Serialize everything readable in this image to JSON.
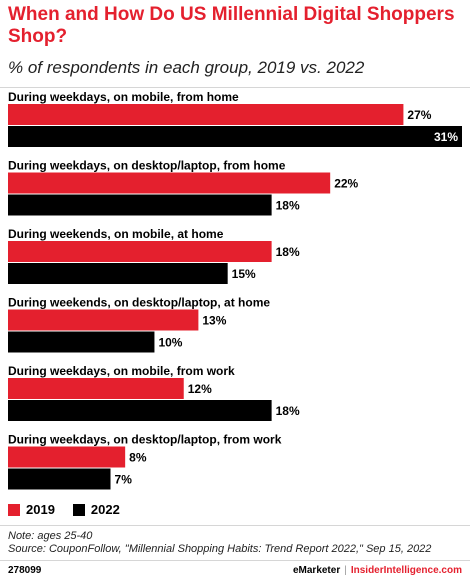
{
  "header": {
    "title": "When and How Do US Millennial Digital Shoppers Shop?",
    "subtitle": "% of respondents in each group, 2019 vs. 2022"
  },
  "colors": {
    "s2019": "#e4202e",
    "s2022": "#000000"
  },
  "legend": {
    "s2019": "2019",
    "s2022": "2022"
  },
  "notes": {
    "note": "Note: ages 25-40",
    "source": "Source: CouponFollow, \"Millennial Shopping Habits: Trend Report 2022,\" Sep 15, 2022"
  },
  "footer": {
    "id": "278099",
    "brand_left": "eMarketer",
    "brand_sep": "|",
    "brand_right": "InsiderIntelligence.com"
  },
  "chart_data": {
    "type": "bar",
    "orientation": "horizontal",
    "categories": [
      "During weekdays, on mobile, from home",
      "During weekdays, on desktop/laptop, from home",
      "During weekends, on mobile, at home",
      "During weekends, on desktop/laptop, at home",
      "During weekdays, on mobile, from work",
      "During weekdays, on desktop/laptop, from work"
    ],
    "series": [
      {
        "name": "2019",
        "values": [
          27,
          22,
          18,
          13,
          12,
          8
        ]
      },
      {
        "name": "2022",
        "values": [
          31,
          18,
          15,
          10,
          18,
          7
        ]
      }
    ],
    "value_suffix": "%",
    "xlim": [
      0,
      31
    ],
    "grid": false,
    "legend_position": "bottom-left"
  }
}
